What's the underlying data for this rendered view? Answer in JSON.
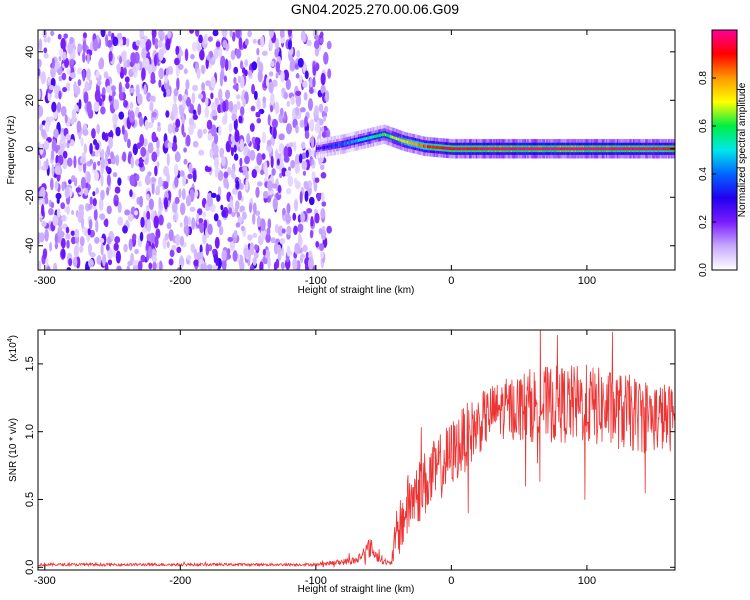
{
  "figure_title": "GN04.2025.270.00.06.G09",
  "colors": {
    "snr_line": "#ee3333",
    "colormap": [
      "#ffffff",
      "#c8a8ff",
      "#7a1cff",
      "#2200ee",
      "#0066ff",
      "#00e8e8",
      "#00ee44",
      "#ffff00",
      "#ff9900",
      "#ff0000",
      "#ff0099"
    ]
  },
  "chart_data": [
    {
      "type": "heatmap",
      "title": "",
      "xlabel": "Height of straight line (km)",
      "ylabel": "Frequency (Hz)",
      "xlim": [
        -305,
        165
      ],
      "ylim": [
        -50,
        49
      ],
      "xticks": [
        -300,
        -200,
        -100,
        0,
        100
      ],
      "xtick_labels": [
        "-300",
        "-200",
        "-100",
        "0",
        "100"
      ],
      "yticks": [
        -40,
        -20,
        0,
        20,
        40
      ],
      "ytick_labels": [
        "-40",
        "-20",
        "0",
        "20",
        "40"
      ],
      "colorbar": {
        "label": "Normalized spectral amplitude",
        "range": [
          0,
          1
        ],
        "ticks": [
          0,
          0.2,
          0.4,
          0.6,
          0.8
        ],
        "tick_labels": [
          "0.0",
          "0.2",
          "0.4",
          "0.6",
          "0.8"
        ]
      },
      "ridge": {
        "description_regions": [
          {
            "x_from": -305,
            "x_to": -90,
            "pattern": "broadband noise"
          },
          {
            "x_from": -90,
            "x_to": 165,
            "pattern": "narrow line near 0 Hz"
          }
        ],
        "points": [
          {
            "x": -100,
            "freq": 0,
            "amp": 0.25
          },
          {
            "x": -80,
            "freq": 2,
            "amp": 0.4
          },
          {
            "x": -65,
            "freq": 4,
            "amp": 0.5
          },
          {
            "x": -50,
            "freq": 6,
            "amp": 0.6
          },
          {
            "x": -35,
            "freq": 3,
            "amp": 0.75
          },
          {
            "x": -20,
            "freq": 1,
            "amp": 0.85
          },
          {
            "x": 0,
            "freq": 0,
            "amp": 0.95
          },
          {
            "x": 50,
            "freq": 0,
            "amp": 1.0
          },
          {
            "x": 100,
            "freq": 0,
            "amp": 1.0
          },
          {
            "x": 165,
            "freq": 0,
            "amp": 0.95
          }
        ]
      },
      "grid": false
    },
    {
      "type": "line",
      "title": "",
      "xlabel": "Height of straight line (km)",
      "ylabel": "SNR (10 * v/v)",
      "y_multiplier_label": "(x10",
      "y_multiplier_exponent": "4",
      "xlim": [
        -305,
        165
      ],
      "ylim": [
        -0.02,
        1.75
      ],
      "xticks": [
        -300,
        -200,
        -100,
        0,
        100
      ],
      "xtick_labels": [
        "-300",
        "-200",
        "-100",
        "0",
        "100"
      ],
      "yticks": [
        0.0,
        0.5,
        1.0,
        1.5
      ],
      "ytick_labels": [
        "0.0",
        "0.5",
        "1.0",
        "1.5"
      ],
      "series": [
        {
          "envelope": [
            {
              "x": -305,
              "mean": 0.02,
              "spread": 0.01
            },
            {
              "x": -100,
              "mean": 0.02,
              "spread": 0.01
            },
            {
              "x": -70,
              "mean": 0.05,
              "spread": 0.03
            },
            {
              "x": -60,
              "mean": 0.15,
              "spread": 0.08
            },
            {
              "x": -55,
              "mean": 0.08,
              "spread": 0.04
            },
            {
              "x": -45,
              "mean": 0.02,
              "spread": 0.02
            },
            {
              "x": -40,
              "mean": 0.25,
              "spread": 0.2
            },
            {
              "x": -30,
              "mean": 0.5,
              "spread": 0.25
            },
            {
              "x": -10,
              "mean": 0.72,
              "spread": 0.25
            },
            {
              "x": 10,
              "mean": 0.95,
              "spread": 0.25
            },
            {
              "x": 30,
              "mean": 1.15,
              "spread": 0.2
            },
            {
              "x": 60,
              "mean": 1.2,
              "spread": 0.28
            },
            {
              "x": 100,
              "mean": 1.2,
              "spread": 0.3
            },
            {
              "x": 140,
              "mean": 1.12,
              "spread": 0.28
            },
            {
              "x": 165,
              "mean": 1.1,
              "spread": 0.25
            }
          ]
        }
      ],
      "grid": false
    }
  ]
}
